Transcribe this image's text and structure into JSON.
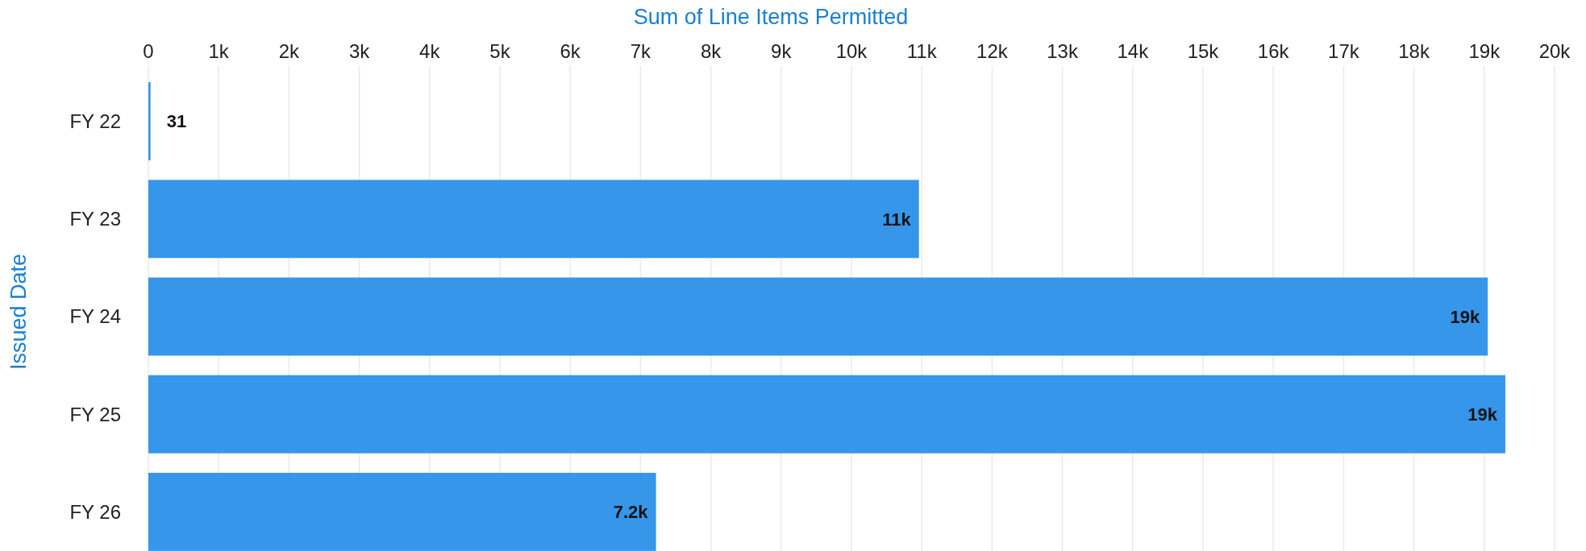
{
  "chart_data": {
    "type": "bar",
    "orientation": "horizontal",
    "xlabel": "Sum of Line Items Permitted",
    "ylabel": "Issued Date",
    "categories": [
      "FY 22",
      "FY 23",
      "FY 24",
      "FY 25",
      "FY 26"
    ],
    "values": [
      31,
      10960,
      19050,
      19300,
      7220
    ],
    "value_labels": [
      "31",
      "11k",
      "19k",
      "19k",
      "7.2k"
    ],
    "color": "#3596ea",
    "xlim": [
      0,
      20000
    ],
    "xticks": [
      {
        "value": 0,
        "label": "0"
      },
      {
        "value": 1000,
        "label": "1k"
      },
      {
        "value": 2000,
        "label": "2k"
      },
      {
        "value": 3000,
        "label": "3k"
      },
      {
        "value": 4000,
        "label": "4k"
      },
      {
        "value": 5000,
        "label": "5k"
      },
      {
        "value": 6000,
        "label": "6k"
      },
      {
        "value": 7000,
        "label": "7k"
      },
      {
        "value": 8000,
        "label": "8k"
      },
      {
        "value": 9000,
        "label": "9k"
      },
      {
        "value": 10000,
        "label": "10k"
      },
      {
        "value": 11000,
        "label": "11k"
      },
      {
        "value": 12000,
        "label": "12k"
      },
      {
        "value": 13000,
        "label": "13k"
      },
      {
        "value": 14000,
        "label": "14k"
      },
      {
        "value": 15000,
        "label": "15k"
      },
      {
        "value": 16000,
        "label": "16k"
      },
      {
        "value": 17000,
        "label": "17k"
      },
      {
        "value": 18000,
        "label": "18k"
      },
      {
        "value": 19000,
        "label": "19k"
      },
      {
        "value": 20000,
        "label": "20k"
      }
    ],
    "grid": "x"
  }
}
